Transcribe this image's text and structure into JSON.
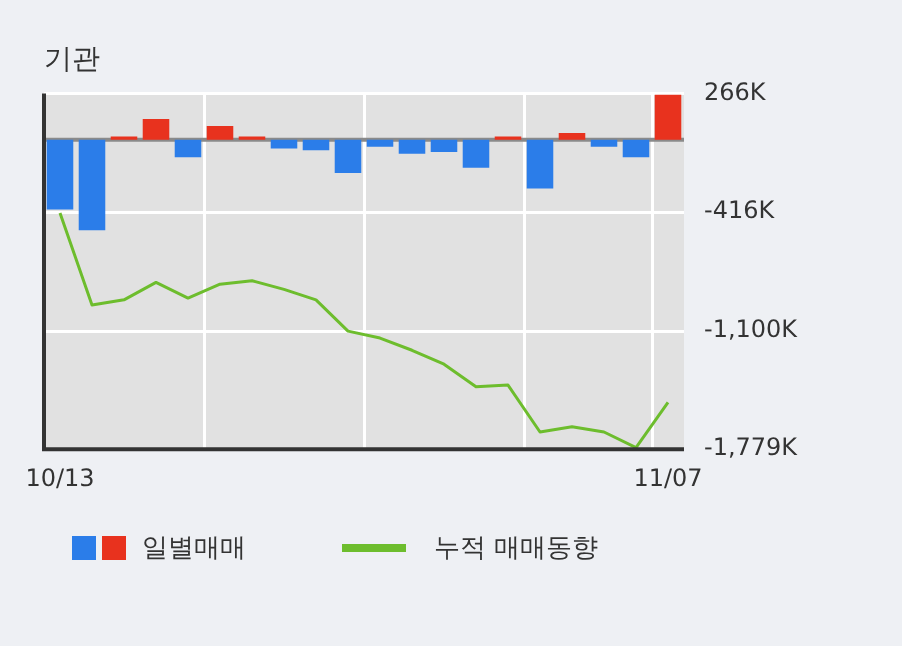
{
  "chart_data": {
    "type": "bar",
    "title": "기관",
    "categories": [
      "10/13",
      null,
      null,
      null,
      null,
      null,
      null,
      null,
      null,
      null,
      null,
      null,
      null,
      null,
      null,
      null,
      null,
      null,
      null,
      "11/07"
    ],
    "series": [
      {
        "name": "일별매매",
        "colors": [
          "#2b7de9",
          "#2b7de9",
          "#e8321e",
          "#e8321e",
          "#2b7de9",
          "#e8321e",
          "#e8321e",
          "#2b7de9",
          "#2b7de9",
          "#2b7de9",
          "#2b7de9",
          "#2b7de9",
          "#2b7de9",
          "#2b7de9",
          "#e8321e",
          "#2b7de9",
          "#e8321e",
          "#2b7de9",
          "#2b7de9",
          "#e8321e"
        ],
        "values": [
          -400,
          -520,
          20,
          120,
          -100,
          80,
          20,
          -50,
          -60,
          -190,
          -40,
          -80,
          -70,
          -160,
          20,
          -280,
          40,
          -40,
          -100,
          260
        ]
      },
      {
        "name": "누적 매매동향",
        "type": "line",
        "color": "#6dbd2d",
        "values": [
          -420,
          -950,
          -920,
          -820,
          -910,
          -830,
          -810,
          -860,
          -920,
          -1100,
          -1140,
          -1210,
          -1290,
          -1420,
          -1410,
          -1680,
          -1650,
          -1680,
          -1770,
          -1510
        ]
      }
    ],
    "ylim": [
      -1779,
      266
    ],
    "yticks": [
      {
        "value": 266,
        "label": "266K"
      },
      {
        "value": -416,
        "label": "-416K"
      },
      {
        "value": -1100,
        "label": "-1,100K"
      },
      {
        "value": -1779,
        "label": "-1,779K"
      }
    ],
    "grid": true,
    "legend": "bottom",
    "marker": "none"
  }
}
